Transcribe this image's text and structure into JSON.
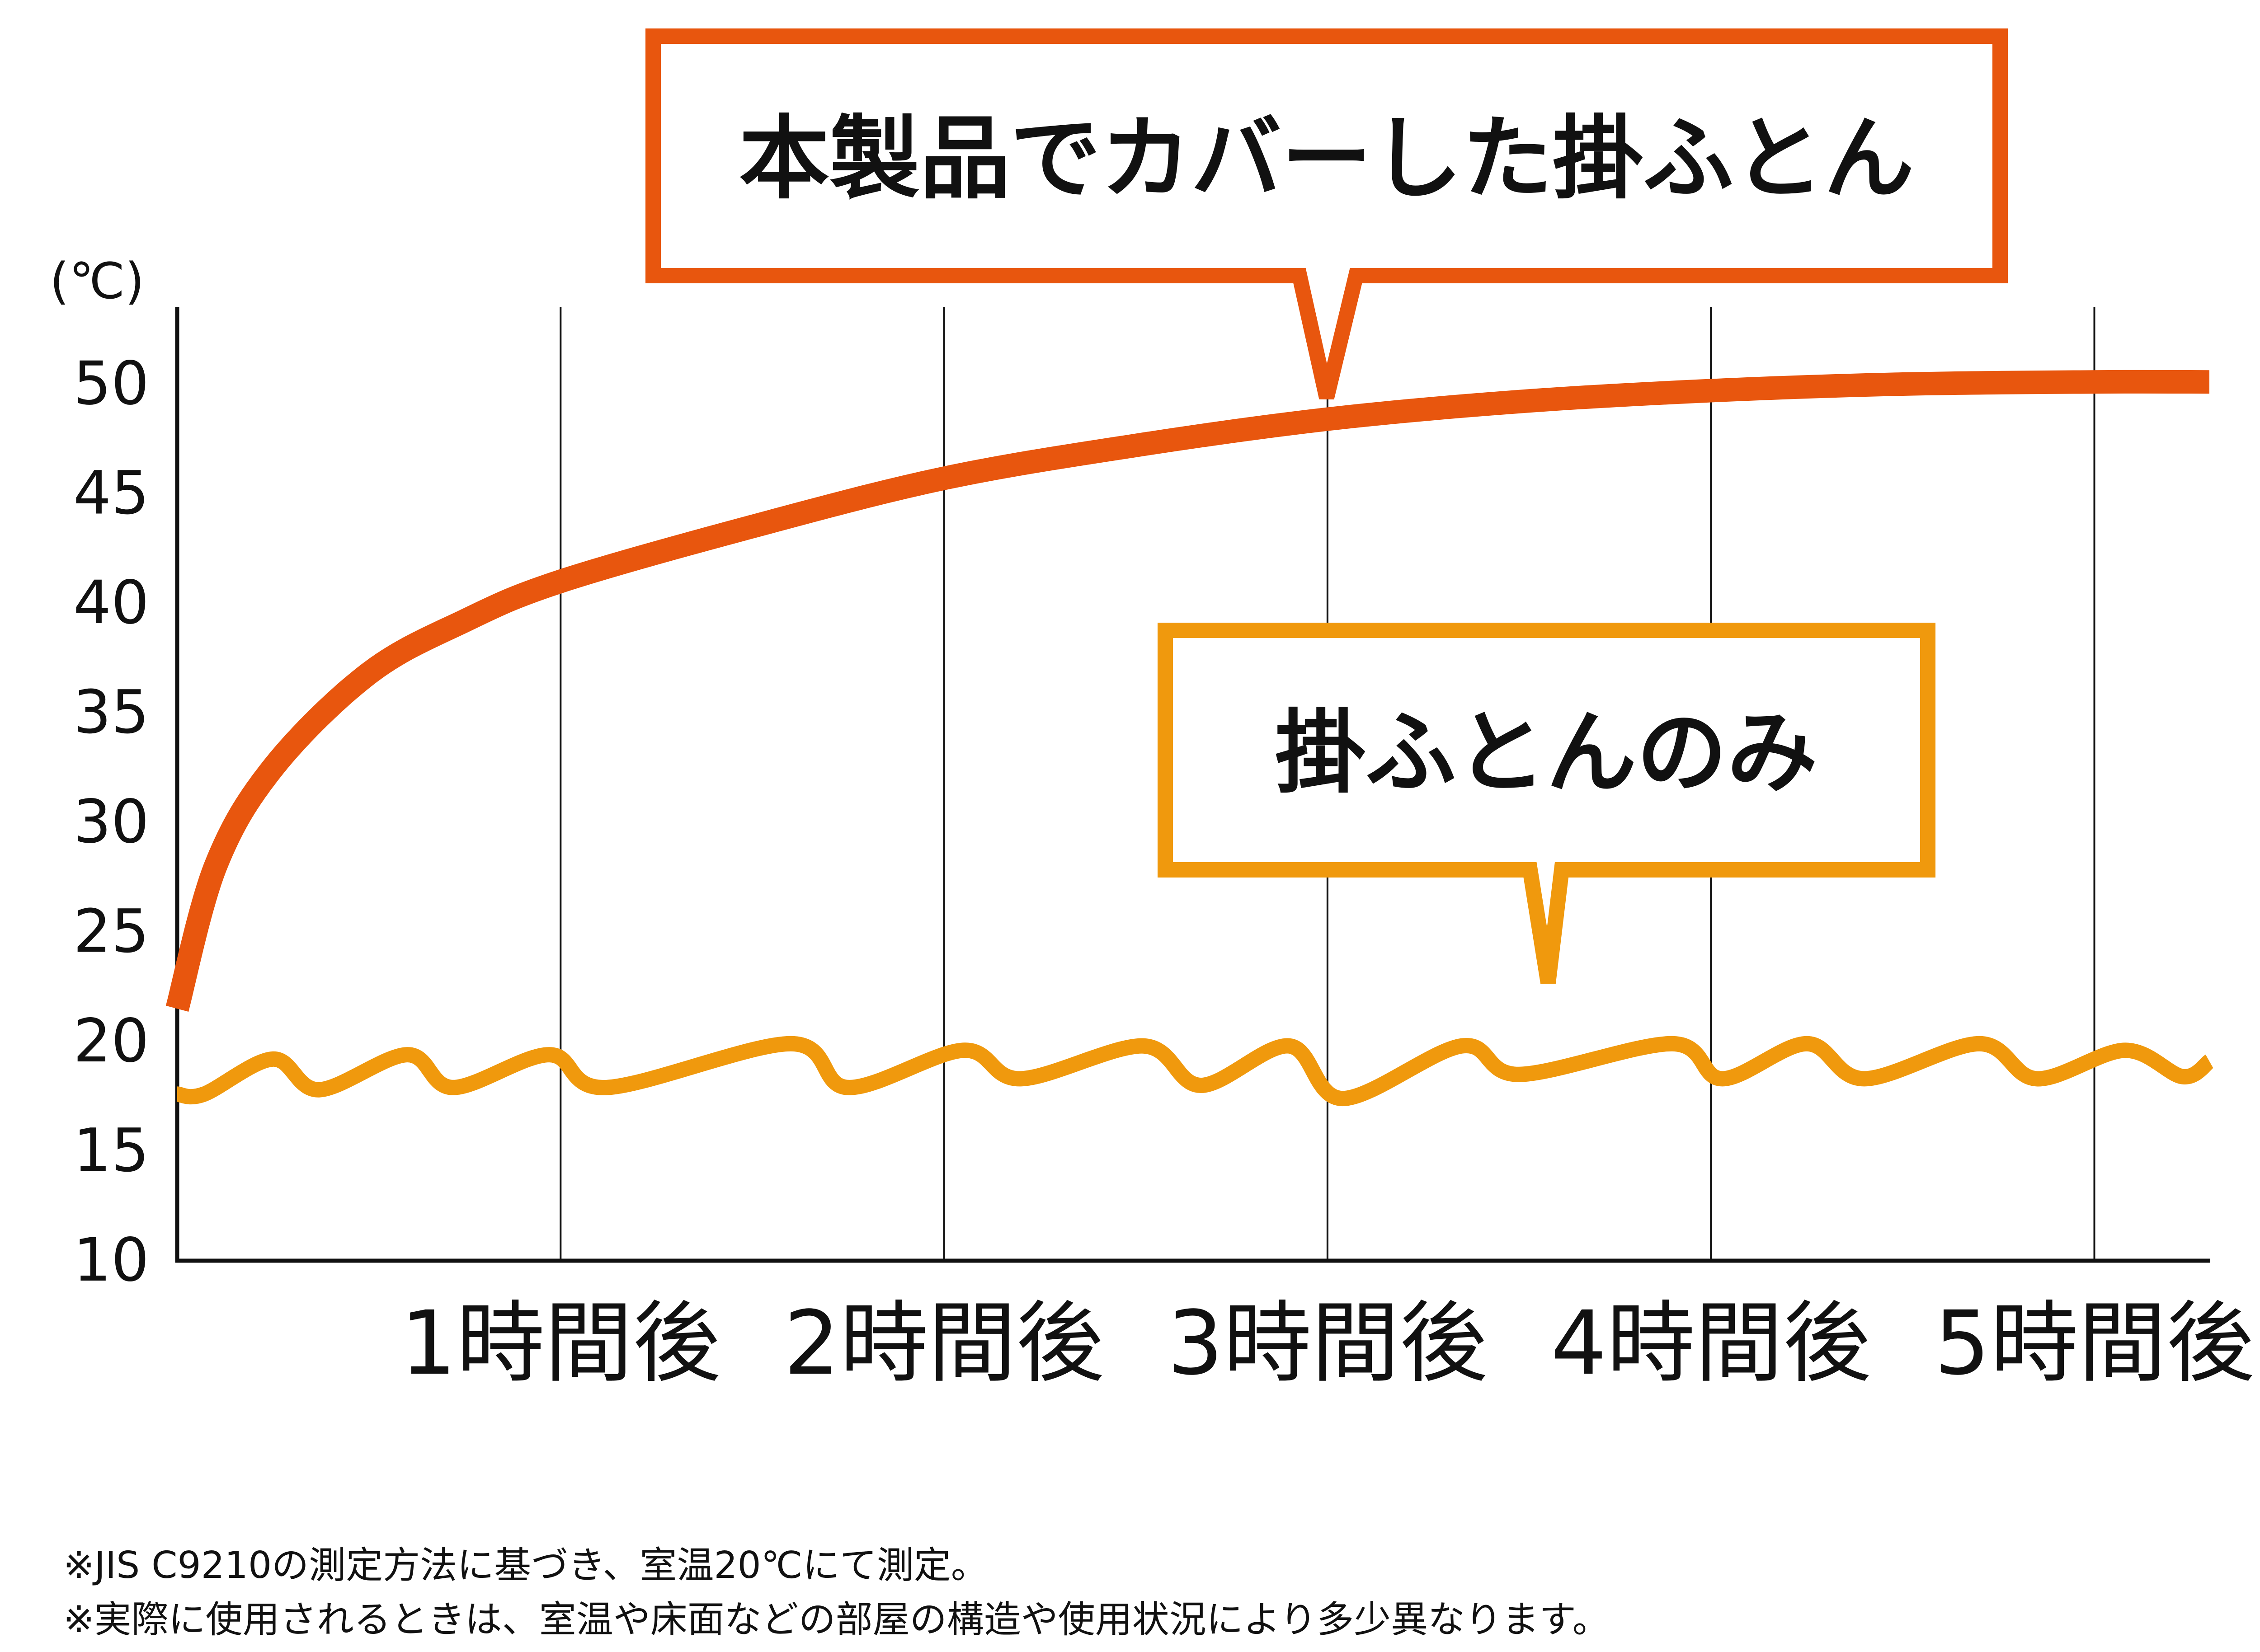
{
  "chart_data": {
    "type": "line",
    "ylabel": "(℃)",
    "ylim": [
      10,
      50
    ],
    "yticks": [
      10,
      15,
      20,
      25,
      30,
      35,
      40,
      45,
      50
    ],
    "x_tick_labels": [
      "1時間後",
      "2時間後",
      "3時間後",
      "4時間後",
      "5時間後"
    ],
    "xlim": [
      0,
      5.3
    ],
    "grid": "vertical",
    "series": [
      {
        "name": "本製品でカバーした掛ふとん",
        "color": "#e8560e",
        "x": [
          0,
          0.1,
          0.25,
          0.5,
          0.75,
          1,
          1.5,
          2,
          2.5,
          3,
          3.5,
          4,
          4.5,
          5,
          5.3
        ],
        "y": [
          21.5,
          28,
          32.5,
          36.8,
          39.2,
          41,
          43.5,
          45.7,
          47.2,
          48.4,
          49.2,
          49.7,
          50,
          50.1,
          50.1
        ]
      },
      {
        "name": "掛ふとんのみ",
        "color": "#f0990d",
        "x": [
          0,
          0.07,
          0.25,
          0.37,
          0.6,
          0.72,
          0.97,
          1.12,
          1.6,
          1.75,
          2.05,
          2.2,
          2.52,
          2.67,
          2.9,
          3.04,
          3.35,
          3.5,
          3.9,
          4.03,
          4.25,
          4.4,
          4.7,
          4.85,
          5.08,
          5.23,
          5.3
        ],
        "y": [
          17.6,
          17.6,
          19.2,
          17.8,
          19.4,
          17.9,
          19.4,
          17.9,
          19.9,
          17.9,
          19.6,
          18.3,
          19.8,
          18,
          19.8,
          17.4,
          19.8,
          18.5,
          19.9,
          18.3,
          19.9,
          18.3,
          19.9,
          18.3,
          19.6,
          18.4,
          19.1
        ]
      }
    ]
  },
  "callouts": [
    {
      "text": "本製品でカバーした掛ふとん"
    },
    {
      "text": "掛ふとんのみ"
    }
  ],
  "notes": [
    "※JIS C9210の測定方法に基づき、室温20℃にて測定。",
    "※実際に使用されるときは、室温や床面などの部屋の構造や使用状況により多少異なります。"
  ]
}
